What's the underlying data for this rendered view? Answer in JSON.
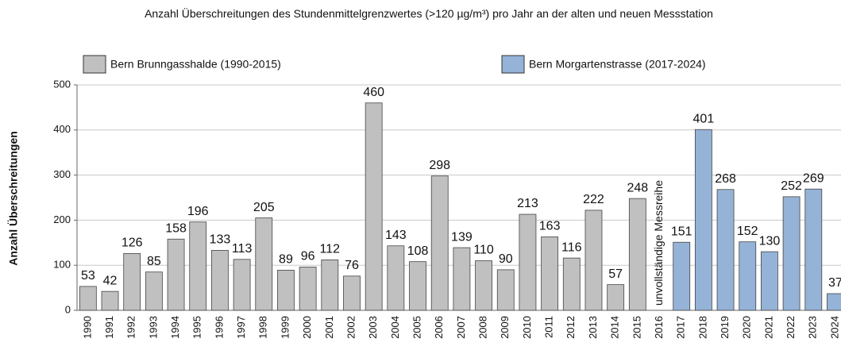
{
  "chart_data": {
    "type": "bar",
    "title": "Anzahl Überschreitungen des Stundenmittelgrenzwertes (>120 µg/m³) pro Jahr an der alten und neuen Messstation",
    "y_label": "Anzahl Überschreitungen",
    "annotation": "unvollständige Messreihe",
    "categories": [
      "1990",
      "1991",
      "1992",
      "1993",
      "1994",
      "1995",
      "1996",
      "1997",
      "1998",
      "1999",
      "2000",
      "2001",
      "2002",
      "2003",
      "2004",
      "2005",
      "2006",
      "2007",
      "2008",
      "2009",
      "2010",
      "2011",
      "2012",
      "2013",
      "2014",
      "2015",
      "2016",
      "2017",
      "2018",
      "2019",
      "2020",
      "2021",
      "2022",
      "2023",
      "2024"
    ],
    "series": [
      {
        "name": "Bern Brunngasshalde (1990-2015)",
        "color": "#c0c0c0",
        "values": [
          53,
          42,
          126,
          85,
          158,
          196,
          133,
          113,
          205,
          89,
          96,
          112,
          76,
          460,
          143,
          108,
          298,
          139,
          110,
          90,
          213,
          163,
          116,
          222,
          57,
          248,
          null,
          null,
          null,
          null,
          null,
          null,
          null,
          null,
          null
        ]
      },
      {
        "name": "Bern Morgartenstrasse (2017-2024)",
        "color": "#95b3d7",
        "values": [
          null,
          null,
          null,
          null,
          null,
          null,
          null,
          null,
          null,
          null,
          null,
          null,
          null,
          null,
          null,
          null,
          null,
          null,
          null,
          null,
          null,
          null,
          null,
          null,
          null,
          null,
          null,
          151,
          401,
          268,
          152,
          130,
          252,
          269,
          37
        ]
      }
    ],
    "ylim": [
      0,
      500
    ],
    "yticks": [
      0,
      100,
      200,
      300,
      400,
      500
    ],
    "grid": true
  }
}
